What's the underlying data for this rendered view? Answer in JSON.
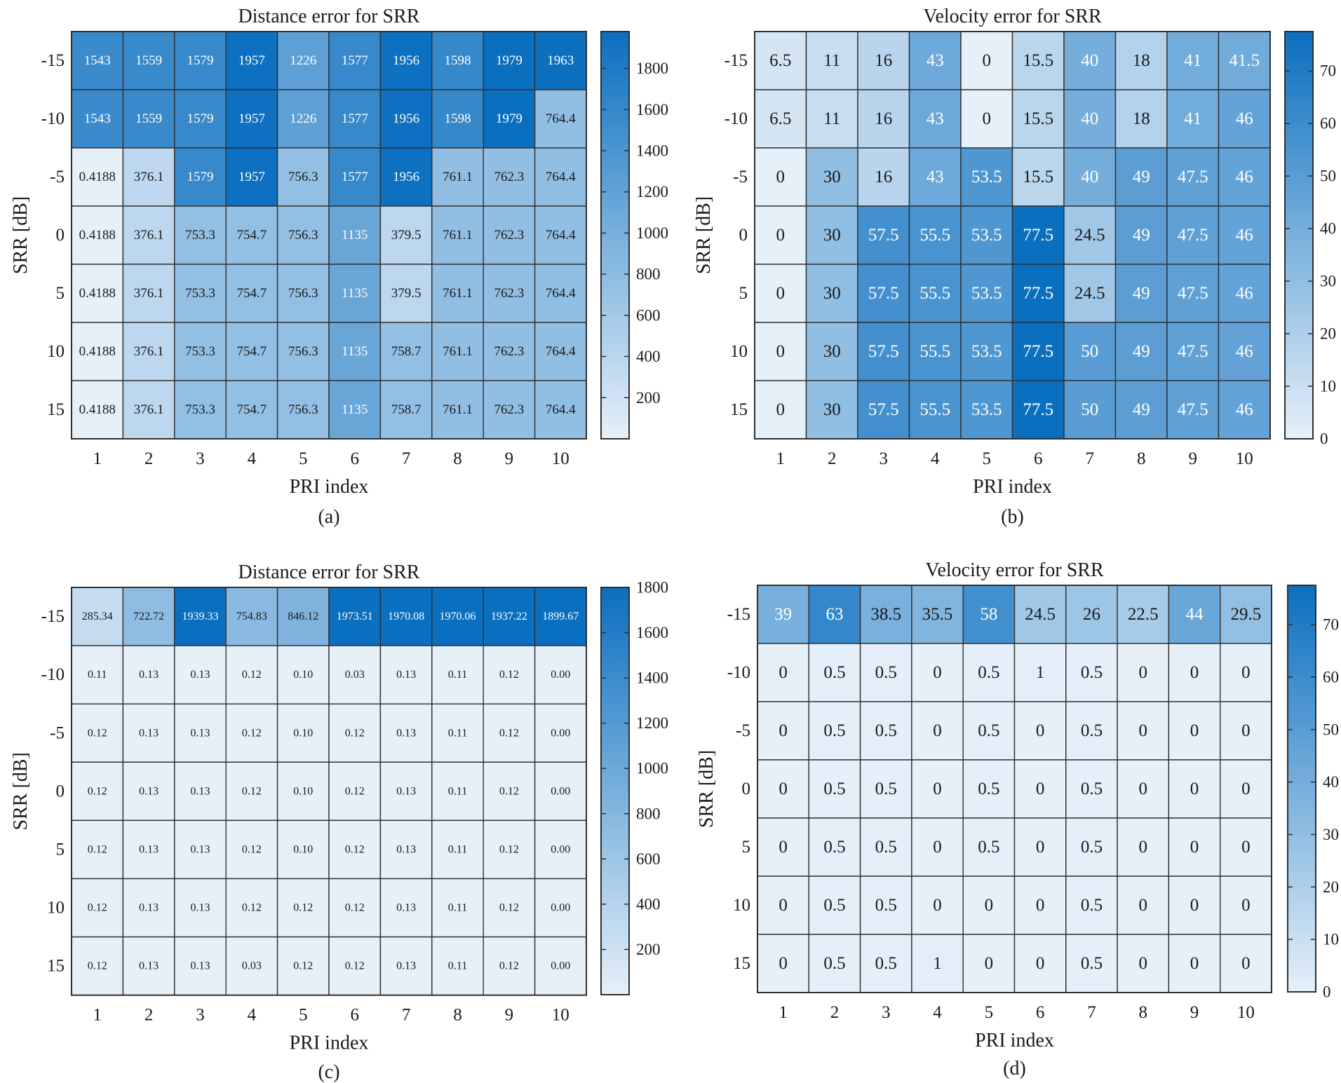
{
  "chart_data": [
    {
      "type": "heatmap",
      "panel_label": "(a)",
      "title": "Distance error for SRR",
      "xlabel": "PRI index",
      "ylabel": "SRR [dB]",
      "x_ticks": [
        "1",
        "2",
        "3",
        "4",
        "5",
        "6",
        "7",
        "8",
        "9",
        "10"
      ],
      "y_ticks": [
        "-15",
        "-10",
        "-5",
        "0",
        "5",
        "10",
        "15"
      ],
      "color_range": [
        0,
        1979
      ],
      "colorbar_ticks": [
        200,
        400,
        600,
        800,
        1000,
        1200,
        1400,
        1600,
        1800
      ],
      "values": [
        [
          "1543",
          "1559",
          "1579",
          "1957",
          "1226",
          "1577",
          "1956",
          "1598",
          "1979",
          "1963"
        ],
        [
          "1543",
          "1559",
          "1579",
          "1957",
          "1226",
          "1577",
          "1956",
          "1598",
          "1979",
          "764.4"
        ],
        [
          "0.4188",
          "376.1",
          "1579",
          "1957",
          "756.3",
          "1577",
          "1956",
          "761.1",
          "762.3",
          "764.4"
        ],
        [
          "0.4188",
          "376.1",
          "753.3",
          "754.7",
          "756.3",
          "1135",
          "379.5",
          "761.1",
          "762.3",
          "764.4"
        ],
        [
          "0.4188",
          "376.1",
          "753.3",
          "754.7",
          "756.3",
          "1135",
          "379.5",
          "761.1",
          "762.3",
          "764.4"
        ],
        [
          "0.4188",
          "376.1",
          "753.3",
          "754.7",
          "756.3",
          "1135",
          "758.7",
          "761.1",
          "762.3",
          "764.4"
        ],
        [
          "0.4188",
          "376.1",
          "753.3",
          "754.7",
          "756.3",
          "1135",
          "758.7",
          "761.1",
          "762.3",
          "764.4"
        ]
      ]
    },
    {
      "type": "heatmap",
      "panel_label": "(b)",
      "title": "Velocity error for SRR",
      "xlabel": "PRI index",
      "ylabel": "SRR [dB]",
      "x_ticks": [
        "1",
        "2",
        "3",
        "4",
        "5",
        "6",
        "7",
        "8",
        "9",
        "10"
      ],
      "y_ticks": [
        "-15",
        "-10",
        "-5",
        "0",
        "5",
        "10",
        "15"
      ],
      "color_range": [
        0,
        77.5
      ],
      "colorbar_ticks": [
        0,
        10,
        20,
        30,
        40,
        50,
        60,
        70
      ],
      "values": [
        [
          "6.5",
          "11",
          "16",
          "43",
          "0",
          "15.5",
          "40",
          "18",
          "41",
          "41.5"
        ],
        [
          "6.5",
          "11",
          "16",
          "43",
          "0",
          "15.5",
          "40",
          "18",
          "41",
          "46"
        ],
        [
          "0",
          "30",
          "16",
          "43",
          "53.5",
          "15.5",
          "40",
          "49",
          "47.5",
          "46"
        ],
        [
          "0",
          "30",
          "57.5",
          "55.5",
          "53.5",
          "77.5",
          "24.5",
          "49",
          "47.5",
          "46"
        ],
        [
          "0",
          "30",
          "57.5",
          "55.5",
          "53.5",
          "77.5",
          "24.5",
          "49",
          "47.5",
          "46"
        ],
        [
          "0",
          "30",
          "57.5",
          "55.5",
          "53.5",
          "77.5",
          "50",
          "49",
          "47.5",
          "46"
        ],
        [
          "0",
          "30",
          "57.5",
          "55.5",
          "53.5",
          "77.5",
          "50",
          "49",
          "47.5",
          "46"
        ]
      ]
    },
    {
      "type": "heatmap",
      "panel_label": "(c)",
      "title": "Distance error for SRR",
      "xlabel": "PRI index",
      "ylabel": "SRR [dB]",
      "x_ticks": [
        "1",
        "2",
        "3",
        "4",
        "5",
        "6",
        "7",
        "8",
        "9",
        "10"
      ],
      "y_ticks": [
        "-15",
        "-10",
        "-5",
        "0",
        "5",
        "10",
        "15"
      ],
      "color_range": [
        0,
        1800
      ],
      "colorbar_ticks": [
        200,
        400,
        600,
        800,
        1000,
        1200,
        1400,
        1600,
        1800
      ],
      "values": [
        [
          "285.34",
          "722.72",
          "1939.33",
          "754.83",
          "846.12",
          "1973.51",
          "1970.08",
          "1970.06",
          "1937.22",
          "1899.67"
        ],
        [
          "0.11",
          "0.13",
          "0.13",
          "0.12",
          "0.10",
          "0.03",
          "0.13",
          "0.11",
          "0.12",
          "0.00"
        ],
        [
          "0.12",
          "0.13",
          "0.13",
          "0.12",
          "0.10",
          "0.12",
          "0.13",
          "0.11",
          "0.12",
          "0.00"
        ],
        [
          "0.12",
          "0.13",
          "0.13",
          "0.12",
          "0.10",
          "0.12",
          "0.13",
          "0.11",
          "0.12",
          "0.00"
        ],
        [
          "0.12",
          "0.13",
          "0.13",
          "0.12",
          "0.10",
          "0.12",
          "0.13",
          "0.11",
          "0.12",
          "0.00"
        ],
        [
          "0.12",
          "0.13",
          "0.13",
          "0.12",
          "0.12",
          "0.12",
          "0.13",
          "0.11",
          "0.12",
          "0.00"
        ],
        [
          "0.12",
          "0.13",
          "0.13",
          "0.03",
          "0.12",
          "0.12",
          "0.13",
          "0.11",
          "0.12",
          "0.00"
        ]
      ]
    },
    {
      "type": "heatmap",
      "panel_label": "(d)",
      "title": "Velocity error for SRR",
      "xlabel": "PRI index",
      "ylabel": "SRR [dB]",
      "x_ticks": [
        "1",
        "2",
        "3",
        "4",
        "5",
        "6",
        "7",
        "8",
        "9",
        "10"
      ],
      "y_ticks": [
        "-15",
        "-10",
        "-5",
        "0",
        "5",
        "10",
        "15"
      ],
      "color_range": [
        0,
        77.5
      ],
      "colorbar_ticks": [
        0,
        10,
        20,
        30,
        40,
        50,
        60,
        70
      ],
      "values": [
        [
          "39",
          "63",
          "38.5",
          "35.5",
          "58",
          "24.5",
          "26",
          "22.5",
          "44",
          "29.5"
        ],
        [
          "0",
          "0.5",
          "0.5",
          "0",
          "0.5",
          "1",
          "0.5",
          "0",
          "0",
          "0"
        ],
        [
          "0",
          "0.5",
          "0.5",
          "0",
          "0.5",
          "0",
          "0.5",
          "0",
          "0",
          "0"
        ],
        [
          "0",
          "0.5",
          "0.5",
          "0",
          "0.5",
          "0",
          "0.5",
          "0",
          "0",
          "0"
        ],
        [
          "0",
          "0.5",
          "0.5",
          "0",
          "0.5",
          "0",
          "0.5",
          "0",
          "0",
          "0"
        ],
        [
          "0",
          "0.5",
          "0.5",
          "0",
          "0",
          "0",
          "0.5",
          "0",
          "0",
          "0"
        ],
        [
          "0",
          "0.5",
          "0.5",
          "1",
          "0",
          "0",
          "0.5",
          "0",
          "0",
          "0"
        ]
      ]
    }
  ],
  "colors": {
    "low": "#e6f0f9",
    "high": "#0b6fbf",
    "grid_line": "#2f2f2f",
    "text": "#1a1a1a"
  }
}
